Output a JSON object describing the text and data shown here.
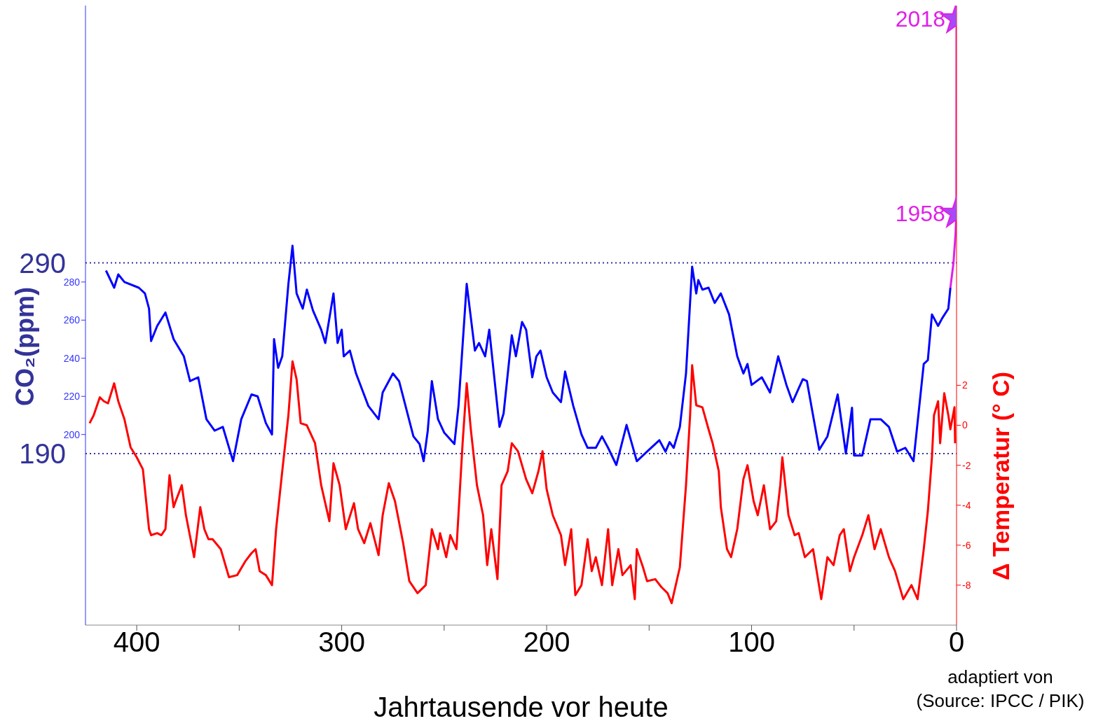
{
  "chart_data": {
    "type": "line",
    "xlabel": "Jahrtausende vor heute",
    "ylabel": "CO₂(ppm)",
    "y2label": "Δ Temperatur (° C)",
    "xlim": [
      425,
      0
    ],
    "xticks": [
      0,
      {
        "value": 50,
        "label": null
      },
      100,
      {
        "value": 150,
        "label": null
      },
      200,
      {
        "value": 250,
        "label": null
      },
      300,
      {
        "value": 350,
        "label": null
      },
      400
    ],
    "ylim": [
      100,
      425
    ],
    "yticks": [
      200,
      220,
      240,
      260,
      280
    ],
    "y2lim": [
      -10,
      21
    ],
    "y2ticks": [
      -8,
      -6,
      -4,
      -2,
      0,
      2
    ],
    "ref_lines": [
      {
        "axis": "y",
        "value": 290,
        "label": "290",
        "color": "#333399",
        "line_style": "dotted"
      },
      {
        "axis": "y",
        "value": 190,
        "label": "190",
        "color": "#333399",
        "line_style": "dotted"
      }
    ],
    "annotations": [
      {
        "text": "2018",
        "x": 0,
        "y": 418
      },
      {
        "text": "1958",
        "x": 0.06,
        "y": 316
      },
      "adaptiert von",
      "(Source: IPCC / PIK)"
    ],
    "series": [
      {
        "color": "#0000ff",
        "x": [
          415,
          411,
          409,
          406,
          399,
          396,
          394,
          393,
          390,
          386,
          382,
          377,
          374,
          370,
          366,
          362,
          358,
          353,
          349,
          344,
          341,
          337,
          334,
          333,
          331,
          329,
          326,
          324,
          322,
          319,
          317,
          314,
          310,
          308,
          304,
          302,
          300,
          299,
          296,
          293,
          287,
          282,
          280,
          275,
          272,
          265,
          262,
          260,
          258,
          256,
          253,
          250,
          245,
          243,
          240,
          239,
          235,
          233,
          230,
          228,
          223,
          221,
          217,
          215,
          212,
          210,
          207,
          205,
          203,
          200,
          197,
          193,
          191,
          187,
          183,
          180,
          176,
          173,
          170,
          166,
          161,
          156,
          151,
          145,
          142,
          140,
          138,
          135,
          132,
          129,
          127,
          126,
          124,
          121,
          118,
          115,
          111,
          107,
          104,
          102,
          100,
          95,
          91,
          87,
          83,
          80,
          75,
          73,
          67,
          63,
          58,
          54,
          51,
          50,
          46,
          42,
          37,
          33,
          29,
          25,
          21,
          16,
          14,
          12,
          9,
          7,
          4,
          3
        ],
        "values": [
          286,
          277,
          284,
          280,
          277,
          274,
          266,
          249,
          257,
          264,
          250,
          241,
          228,
          230,
          208,
          202,
          204,
          186,
          208,
          221,
          220,
          206,
          200,
          250,
          235,
          241,
          279,
          299,
          274,
          266,
          276,
          265,
          255,
          248,
          274,
          248,
          255,
          241,
          244,
          232,
          215,
          208,
          222,
          232,
          228,
          199,
          195,
          186,
          202,
          228,
          208,
          201,
          195,
          215,
          263,
          279,
          244,
          248,
          241,
          255,
          204,
          211,
          252,
          241,
          259,
          255,
          230,
          241,
          244,
          230,
          222,
          217,
          233,
          215,
          200,
          193,
          193,
          199,
          193,
          184,
          205,
          186,
          191,
          197,
          191,
          196,
          193,
          204,
          232,
          288,
          274,
          281,
          276,
          277,
          269,
          274,
          263,
          241,
          232,
          237,
          226,
          230,
          222,
          241,
          226,
          217,
          229,
          228,
          192,
          199,
          221,
          190,
          214,
          189,
          189,
          208,
          208,
          204,
          191,
          193,
          186,
          237,
          239,
          263,
          257,
          261,
          266,
          277
        ]
      },
      {
        "color": "#ff0000",
        "axis": "y2",
        "x": [
          423,
          421,
          418,
          416,
          414,
          411,
          409,
          406,
          403,
          400,
          397,
          394,
          393,
          390,
          388,
          386,
          384,
          382,
          381,
          378,
          376,
          372,
          369,
          367,
          365,
          363,
          359,
          355,
          351,
          347,
          344,
          342,
          340,
          337,
          334,
          332,
          329,
          326,
          324,
          322,
          320,
          317,
          313,
          310,
          306,
          304,
          301,
          298,
          294,
          292,
          289,
          286,
          282,
          280,
          277,
          274,
          270,
          267,
          263,
          259,
          256,
          253,
          252,
          249,
          247,
          244,
          241,
          239,
          237,
          234,
          231,
          229,
          227,
          224,
          222,
          219,
          217,
          214,
          210,
          207,
          204,
          202,
          200,
          197,
          193,
          191,
          188,
          186,
          183,
          180,
          178,
          176,
          173,
          170,
          168,
          165,
          163,
          159,
          157,
          156,
          153,
          151,
          147,
          144,
          141,
          139,
          135,
          132,
          130,
          129,
          127,
          124,
          121,
          119,
          116,
          115,
          112,
          110,
          107,
          104,
          102,
          99,
          97,
          94,
          91,
          88,
          86,
          85,
          82,
          79,
          77,
          74,
          70,
          66,
          63,
          60,
          57,
          55,
          52,
          50,
          46,
          43,
          40,
          37,
          33,
          30,
          26,
          22,
          19,
          16,
          14,
          12,
          11,
          9,
          8,
          6,
          4,
          3,
          1,
          0.7
        ],
        "values": [
          0.1,
          0.5,
          1.4,
          1.2,
          1.1,
          2.1,
          1.2,
          0.3,
          -1.1,
          -1.6,
          -2.2,
          -5.2,
          -5.5,
          -5.4,
          -5.5,
          -5.2,
          -2.5,
          -4.1,
          -3.8,
          -3.0,
          -4.5,
          -6.6,
          -4.1,
          -5.2,
          -5.7,
          -5.7,
          -6.2,
          -7.6,
          -7.5,
          -6.8,
          -6.4,
          -6.2,
          -7.3,
          -7.5,
          -8.0,
          -5.2,
          -2.3,
          0.5,
          3.2,
          2.3,
          0.1,
          0.0,
          -0.9,
          -3.0,
          -4.8,
          -1.9,
          -3.0,
          -5.2,
          -3.9,
          -5.2,
          -5.9,
          -4.9,
          -6.5,
          -4.5,
          -2.9,
          -3.8,
          -5.9,
          -7.8,
          -8.4,
          -8.0,
          -5.2,
          -6.2,
          -5.4,
          -6.6,
          -5.5,
          -6.2,
          -0.9,
          2.1,
          -0.2,
          -3.0,
          -4.5,
          -7.0,
          -5.2,
          -7.7,
          -3.0,
          -2.3,
          -0.9,
          -1.3,
          -2.7,
          -3.4,
          -2.3,
          -1.3,
          -3.2,
          -4.5,
          -5.5,
          -7.0,
          -5.2,
          -8.5,
          -8.0,
          -5.7,
          -7.3,
          -6.6,
          -8.0,
          -5.2,
          -8.0,
          -6.2,
          -7.5,
          -7.0,
          -8.7,
          -6.2,
          -7.1,
          -7.8,
          -7.7,
          -8.1,
          -8.4,
          -8.9,
          -7.1,
          -3.0,
          0.5,
          3.0,
          1.0,
          0.9,
          -0.2,
          -0.9,
          -2.3,
          -4.1,
          -6.2,
          -6.6,
          -5.2,
          -2.7,
          -2.0,
          -3.8,
          -4.5,
          -3.0,
          -5.2,
          -4.8,
          -3.0,
          -1.6,
          -4.5,
          -5.5,
          -5.4,
          -6.6,
          -6.2,
          -8.7,
          -6.6,
          -7.0,
          -5.5,
          -5.2,
          -7.3,
          -6.6,
          -5.5,
          -4.5,
          -6.2,
          -5.2,
          -6.6,
          -7.3,
          -8.7,
          -8.0,
          -8.7,
          -6.2,
          -4.3,
          -1.6,
          0.5,
          1.2,
          -0.9,
          1.6,
          0.5,
          -0.2,
          0.9,
          -0.9
        ]
      },
      {
        "color": "#e020e8",
        "x": [
          3,
          1.5,
          0.5,
          0.06,
          0
        ],
        "values": [
          277,
          290,
          305,
          316,
          418
        ]
      },
      {
        "type": "scatter",
        "color": "#a64bf4",
        "marker": "star",
        "x": [
          0.06,
          0
        ],
        "values": [
          316,
          418
        ]
      }
    ]
  }
}
